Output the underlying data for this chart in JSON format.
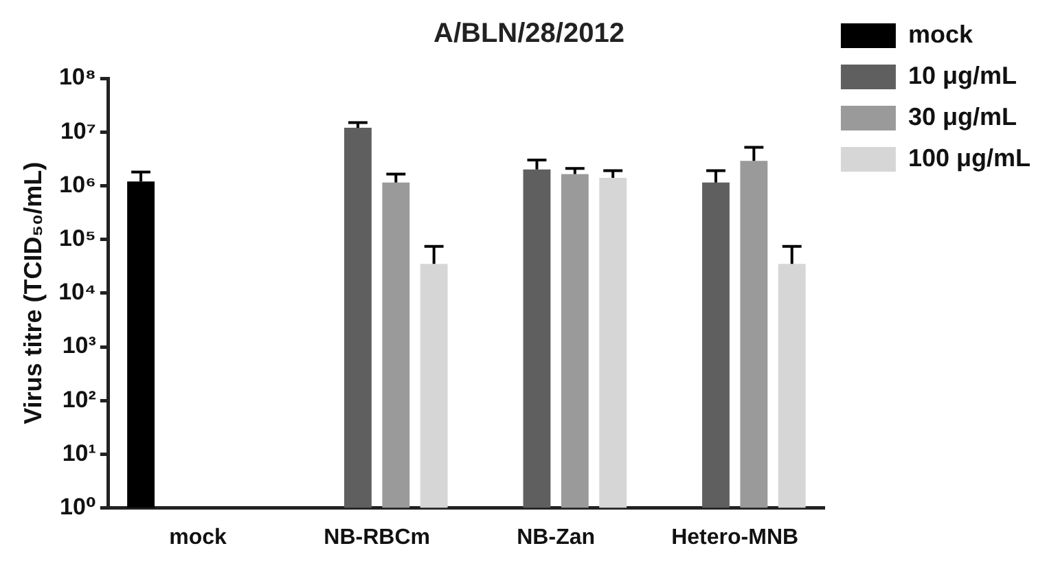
{
  "chart_data": {
    "type": "bar",
    "title": "A/BLN/28/2012",
    "ylabel": "Virus titre (TCID₅₀/mL)",
    "categories": [
      "mock",
      "NB-RBCm",
      "NB-Zan",
      "Hetero-MNB"
    ],
    "series": [
      {
        "name": "mock",
        "color": "#000000",
        "values": [
          1200000,
          null,
          null,
          null
        ],
        "errors": [
          [
            1200000,
            1800000
          ],
          null,
          null,
          null
        ]
      },
      {
        "name": "10 μg/mL",
        "color": "#5f5f5f",
        "values": [
          null,
          12000000,
          2000000,
          1150000
        ],
        "errors": [
          null,
          [
            12000000,
            15000000
          ],
          [
            2000000,
            3000000
          ],
          [
            1150000,
            1900000
          ]
        ]
      },
      {
        "name": "30 μg/mL",
        "color": "#9a9a9a",
        "values": [
          null,
          1150000,
          1650000,
          2900000
        ],
        "errors": [
          null,
          [
            1150000,
            1650000
          ],
          [
            1650000,
            2100000
          ],
          [
            2900000,
            5200000
          ]
        ]
      },
      {
        "name": "100 μg/mL",
        "color": "#d6d6d6",
        "values": [
          null,
          35000,
          1400000,
          35000
        ],
        "errors": [
          null,
          [
            35000,
            74000
          ],
          [
            1400000,
            1900000
          ],
          [
            35000,
            74000
          ]
        ]
      }
    ],
    "log": true,
    "ylim": [
      1,
      100000000
    ],
    "yticks": [
      {
        "value": 1,
        "label": "10⁰"
      },
      {
        "value": 10,
        "label": "10¹"
      },
      {
        "value": 100,
        "label": "10²"
      },
      {
        "value": 1000,
        "label": "10³"
      },
      {
        "value": 10000,
        "label": "10⁴"
      },
      {
        "value": 100000,
        "label": "10⁵"
      },
      {
        "value": 1000000,
        "label": "10⁶"
      },
      {
        "value": 10000000,
        "label": "10⁷"
      },
      {
        "value": 100000000,
        "label": "10⁸"
      }
    ],
    "grid": false,
    "legend": "right"
  }
}
